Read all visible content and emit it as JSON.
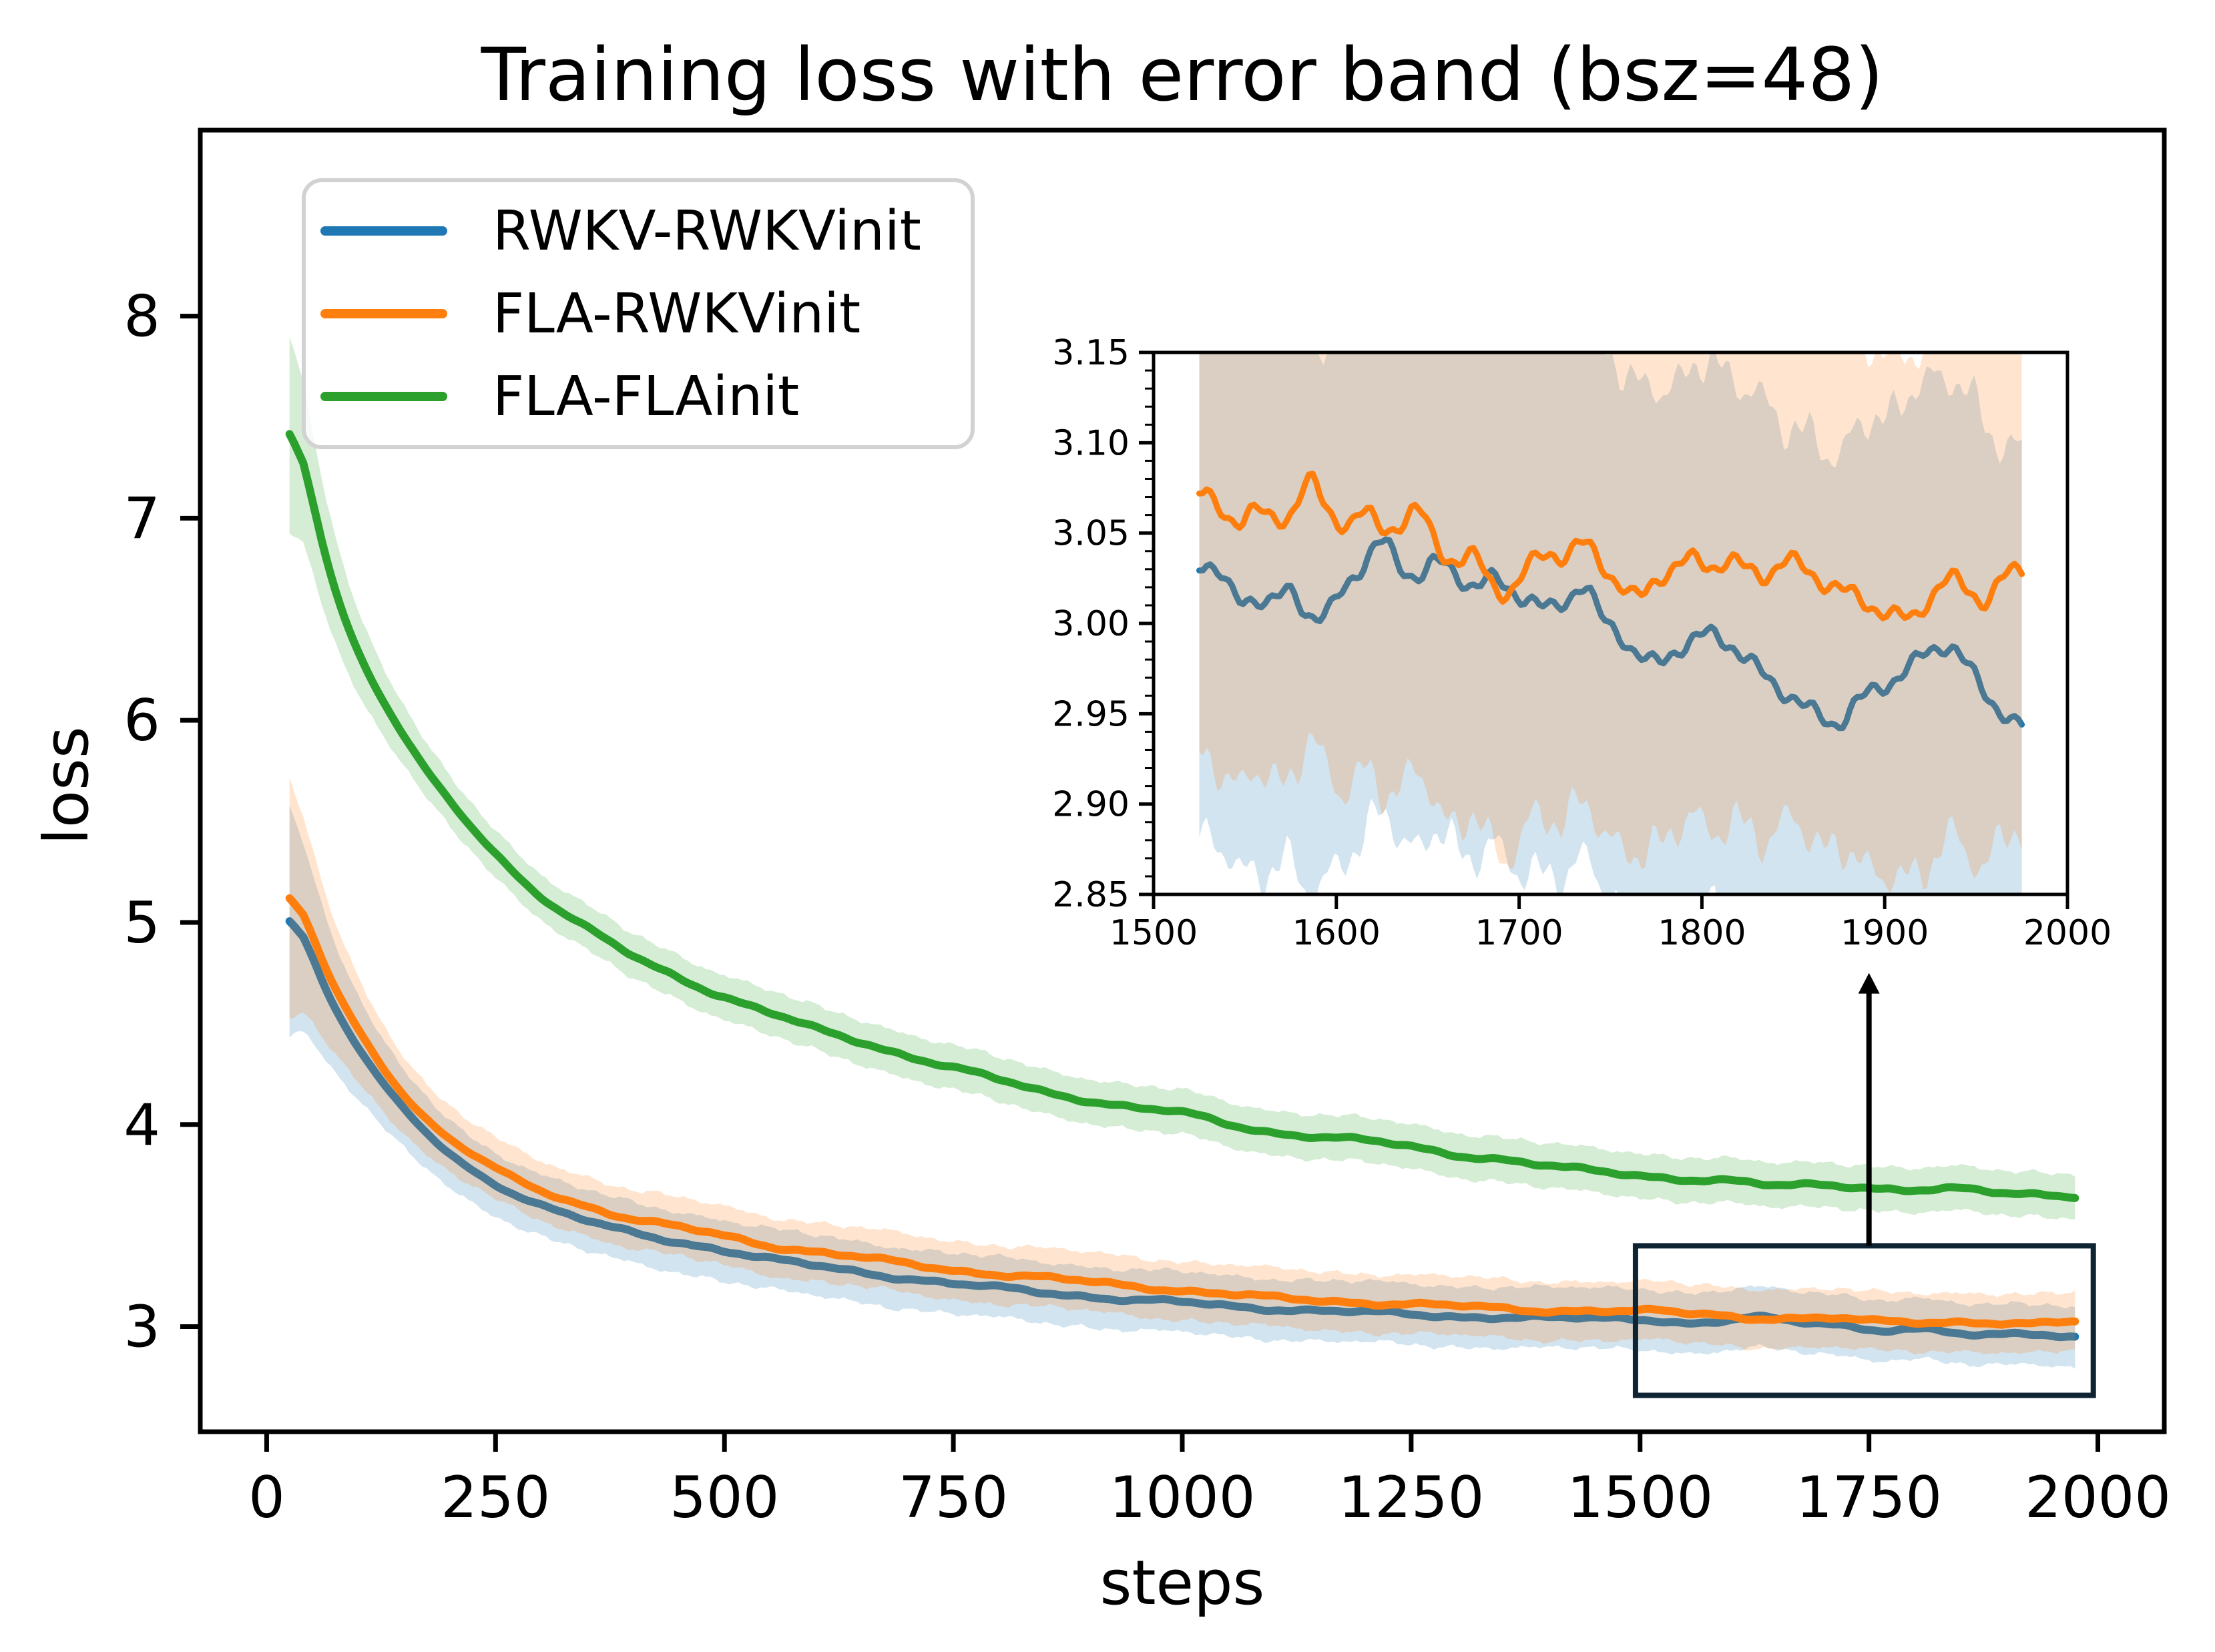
{
  "chart_data": {
    "type": "line",
    "title": "Training loss with error band (bsz=48)",
    "xlabel": "steps",
    "ylabel": "loss",
    "xlim": [
      -72.5,
      2072.5
    ],
    "ylim": [
      2.48,
      8.92
    ],
    "xticks": [
      0,
      250,
      500,
      750,
      1000,
      1250,
      1500,
      1750,
      2000
    ],
    "yticks": [
      3,
      4,
      5,
      6,
      7,
      8
    ],
    "grid": false,
    "legend_position": "upper left",
    "legend_frame_color": "#d2d2d2",
    "spine_color": "#000000",
    "band_opacity": 0.2,
    "series": [
      {
        "name": "RWKV-RWKVinit",
        "color": "#1f77b4",
        "band_halfwidth": 0.15,
        "band_start_extra": 0.42,
        "noise_seed": 11,
        "points": [
          [
            25,
            5.2
          ],
          [
            35,
            5.0
          ],
          [
            50,
            4.82
          ],
          [
            65,
            4.65
          ],
          [
            80,
            4.52
          ],
          [
            100,
            4.38
          ],
          [
            125,
            4.21
          ],
          [
            150,
            4.07
          ],
          [
            175,
            3.95
          ],
          [
            200,
            3.85
          ],
          [
            225,
            3.77
          ],
          [
            250,
            3.7
          ],
          [
            275,
            3.65
          ],
          [
            300,
            3.6
          ],
          [
            325,
            3.56
          ],
          [
            350,
            3.52
          ],
          [
            375,
            3.49
          ],
          [
            400,
            3.46
          ],
          [
            425,
            3.44
          ],
          [
            450,
            3.42
          ],
          [
            475,
            3.4
          ],
          [
            500,
            3.38
          ],
          [
            550,
            3.33
          ],
          [
            600,
            3.3
          ],
          [
            650,
            3.27
          ],
          [
            700,
            3.24
          ],
          [
            750,
            3.21
          ],
          [
            800,
            3.19
          ],
          [
            850,
            3.17
          ],
          [
            900,
            3.15
          ],
          [
            950,
            3.13
          ],
          [
            1000,
            3.12
          ],
          [
            1050,
            3.1
          ],
          [
            1100,
            3.09
          ],
          [
            1150,
            3.08
          ],
          [
            1200,
            3.07
          ],
          [
            1250,
            3.06
          ],
          [
            1300,
            3.05
          ],
          [
            1350,
            3.05
          ],
          [
            1400,
            3.04
          ],
          [
            1450,
            3.04
          ],
          [
            1500,
            3.04
          ],
          [
            1525,
            3.04
          ],
          [
            1550,
            3.01
          ],
          [
            1575,
            3.02
          ],
          [
            1600,
            3.03
          ],
          [
            1625,
            3.05
          ],
          [
            1650,
            3.03
          ],
          [
            1675,
            3.02
          ],
          [
            1700,
            3.02
          ],
          [
            1725,
            3.01
          ],
          [
            1750,
            2.99
          ],
          [
            1775,
            2.98
          ],
          [
            1800,
            2.99
          ],
          [
            1825,
            2.98
          ],
          [
            1850,
            2.96
          ],
          [
            1875,
            2.94
          ],
          [
            1900,
            2.97
          ],
          [
            1925,
            2.98
          ],
          [
            1950,
            2.96
          ],
          [
            1975,
            2.94
          ]
        ]
      },
      {
        "name": "FLA-RWKVinit",
        "color": "#ff7f0e",
        "band_halfwidth": 0.145,
        "band_start_extra": 0.45,
        "noise_seed": 23,
        "points": [
          [
            25,
            5.3
          ],
          [
            35,
            5.12
          ],
          [
            50,
            4.92
          ],
          [
            65,
            4.75
          ],
          [
            80,
            4.62
          ],
          [
            100,
            4.47
          ],
          [
            125,
            4.29
          ],
          [
            150,
            4.14
          ],
          [
            175,
            4.02
          ],
          [
            200,
            3.92
          ],
          [
            225,
            3.85
          ],
          [
            250,
            3.78
          ],
          [
            275,
            3.72
          ],
          [
            300,
            3.67
          ],
          [
            325,
            3.63
          ],
          [
            350,
            3.6
          ],
          [
            375,
            3.56
          ],
          [
            400,
            3.53
          ],
          [
            425,
            3.51
          ],
          [
            450,
            3.49
          ],
          [
            475,
            3.47
          ],
          [
            500,
            3.45
          ],
          [
            550,
            3.4
          ],
          [
            600,
            3.37
          ],
          [
            650,
            3.34
          ],
          [
            700,
            3.31
          ],
          [
            750,
            3.28
          ],
          [
            800,
            3.26
          ],
          [
            850,
            3.24
          ],
          [
            900,
            3.22
          ],
          [
            950,
            3.2
          ],
          [
            1000,
            3.18
          ],
          [
            1050,
            3.16
          ],
          [
            1100,
            3.14
          ],
          [
            1150,
            3.13
          ],
          [
            1200,
            3.12
          ],
          [
            1250,
            3.11
          ],
          [
            1300,
            3.1
          ],
          [
            1350,
            3.09
          ],
          [
            1400,
            3.08
          ],
          [
            1450,
            3.08
          ],
          [
            1500,
            3.07
          ],
          [
            1525,
            3.08
          ],
          [
            1550,
            3.06
          ],
          [
            1575,
            3.07
          ],
          [
            1600,
            3.05
          ],
          [
            1625,
            3.04
          ],
          [
            1650,
            3.05
          ],
          [
            1675,
            3.03
          ],
          [
            1700,
            3.04
          ],
          [
            1725,
            3.04
          ],
          [
            1750,
            3.02
          ],
          [
            1775,
            3.03
          ],
          [
            1800,
            3.03
          ],
          [
            1825,
            3.02
          ],
          [
            1850,
            3.03
          ],
          [
            1875,
            3.02
          ],
          [
            1900,
            3.01
          ],
          [
            1925,
            3.0
          ],
          [
            1950,
            3.02
          ],
          [
            1975,
            3.03
          ]
        ]
      },
      {
        "name": "FLA-FLAinit",
        "color": "#2ca02c",
        "band_halfwidth": 0.11,
        "band_start_extra": 0.38,
        "noise_seed": 37,
        "points": [
          [
            25,
            7.76
          ],
          [
            35,
            7.42
          ],
          [
            50,
            7.05
          ],
          [
            65,
            6.78
          ],
          [
            80,
            6.55
          ],
          [
            100,
            6.32
          ],
          [
            125,
            6.1
          ],
          [
            150,
            5.92
          ],
          [
            175,
            5.74
          ],
          [
            200,
            5.6
          ],
          [
            225,
            5.46
          ],
          [
            250,
            5.35
          ],
          [
            275,
            5.22
          ],
          [
            300,
            5.12
          ],
          [
            325,
            5.04
          ],
          [
            350,
            4.97
          ],
          [
            375,
            4.9
          ],
          [
            400,
            4.83
          ],
          [
            425,
            4.78
          ],
          [
            450,
            4.73
          ],
          [
            475,
            4.68
          ],
          [
            500,
            4.63
          ],
          [
            550,
            4.55
          ],
          [
            600,
            4.47
          ],
          [
            650,
            4.41
          ],
          [
            700,
            4.34
          ],
          [
            750,
            4.28
          ],
          [
            800,
            4.22
          ],
          [
            850,
            4.16
          ],
          [
            900,
            4.12
          ],
          [
            950,
            4.08
          ],
          [
            1000,
            4.06
          ],
          [
            1050,
            4.0
          ],
          [
            1100,
            3.96
          ],
          [
            1150,
            3.94
          ],
          [
            1200,
            3.92
          ],
          [
            1250,
            3.89
          ],
          [
            1300,
            3.85
          ],
          [
            1350,
            3.83
          ],
          [
            1400,
            3.79
          ],
          [
            1450,
            3.77
          ],
          [
            1500,
            3.75
          ],
          [
            1550,
            3.73
          ],
          [
            1600,
            3.72
          ],
          [
            1650,
            3.69
          ],
          [
            1700,
            3.71
          ],
          [
            1750,
            3.69
          ],
          [
            1800,
            3.67
          ],
          [
            1850,
            3.68
          ],
          [
            1900,
            3.66
          ],
          [
            1950,
            3.66
          ],
          [
            1975,
            3.64
          ]
        ]
      }
    ],
    "inset": {
      "xlim": [
        1500,
        2000
      ],
      "ylim": [
        2.85,
        3.15
      ],
      "xticks": [
        1500,
        1600,
        1700,
        1800,
        1900,
        2000
      ],
      "yticks": [
        2.85,
        2.9,
        2.95,
        3.0,
        3.05,
        3.1,
        3.15
      ],
      "minor_tick_step_y": 0.01,
      "series": [
        {
          "name": "RWKV-RWKVinit",
          "color": "#1f77b4",
          "band_halfwidth": 0.15,
          "noise_seed": 51,
          "points": [
            [
              1525,
              3.037
            ],
            [
              1535,
              3.028
            ],
            [
              1545,
              3.012
            ],
            [
              1555,
              3.016
            ],
            [
              1565,
              3.009
            ],
            [
              1575,
              3.021
            ],
            [
              1585,
              3.004
            ],
            [
              1595,
              3.003
            ],
            [
              1605,
              3.021
            ],
            [
              1615,
              3.034
            ],
            [
              1625,
              3.048
            ],
            [
              1635,
              3.03
            ],
            [
              1645,
              3.026
            ],
            [
              1655,
              3.035
            ],
            [
              1665,
              3.028
            ],
            [
              1675,
              3.02
            ],
            [
              1685,
              3.025
            ],
            [
              1695,
              3.019
            ],
            [
              1705,
              3.014
            ],
            [
              1715,
              3.006
            ],
            [
              1725,
              3.012
            ],
            [
              1735,
              3.025
            ],
            [
              1745,
              3.001
            ],
            [
              1755,
              2.996
            ],
            [
              1765,
              2.981
            ],
            [
              1775,
              2.976
            ],
            [
              1785,
              2.986
            ],
            [
              1795,
              2.99
            ],
            [
              1805,
              2.995
            ],
            [
              1815,
              2.99
            ],
            [
              1825,
              2.979
            ],
            [
              1835,
              2.97
            ],
            [
              1845,
              2.963
            ],
            [
              1855,
              2.954
            ],
            [
              1865,
              2.948
            ],
            [
              1875,
              2.944
            ],
            [
              1885,
              2.956
            ],
            [
              1895,
              2.964
            ],
            [
              1905,
              2.969
            ],
            [
              1915,
              2.976
            ],
            [
              1925,
              2.986
            ],
            [
              1935,
              2.99
            ],
            [
              1945,
              2.976
            ],
            [
              1955,
              2.962
            ],
            [
              1965,
              2.95
            ],
            [
              1975,
              2.94
            ]
          ]
        },
        {
          "name": "FLA-RWKVinit",
          "color": "#ff7f0e",
          "band_halfwidth": 0.145,
          "noise_seed": 77,
          "points": [
            [
              1525,
              3.077
            ],
            [
              1535,
              3.061
            ],
            [
              1545,
              3.056
            ],
            [
              1555,
              3.066
            ],
            [
              1565,
              3.054
            ],
            [
              1575,
              3.06
            ],
            [
              1585,
              3.085
            ],
            [
              1595,
              3.059
            ],
            [
              1605,
              3.055
            ],
            [
              1615,
              3.064
            ],
            [
              1625,
              3.049
            ],
            [
              1635,
              3.056
            ],
            [
              1645,
              3.066
            ],
            [
              1655,
              3.041
            ],
            [
              1665,
              3.034
            ],
            [
              1675,
              3.039
            ],
            [
              1685,
              3.021
            ],
            [
              1695,
              3.016
            ],
            [
              1705,
              3.031
            ],
            [
              1715,
              3.041
            ],
            [
              1725,
              3.036
            ],
            [
              1735,
              3.046
            ],
            [
              1745,
              3.034
            ],
            [
              1755,
              3.021
            ],
            [
              1765,
              3.011
            ],
            [
              1775,
              3.026
            ],
            [
              1785,
              3.031
            ],
            [
              1795,
              3.036
            ],
            [
              1805,
              3.031
            ],
            [
              1815,
              3.036
            ],
            [
              1825,
              3.029
            ],
            [
              1835,
              3.026
            ],
            [
              1845,
              3.036
            ],
            [
              1855,
              3.031
            ],
            [
              1865,
              3.024
            ],
            [
              1875,
              3.019
            ],
            [
              1885,
              3.014
            ],
            [
              1895,
              3.009
            ],
            [
              1905,
              3.004
            ],
            [
              1915,
              3.001
            ],
            [
              1925,
              3.016
            ],
            [
              1935,
              3.026
            ],
            [
              1945,
              3.019
            ],
            [
              1955,
              3.011
            ],
            [
              1965,
              3.026
            ],
            [
              1975,
              3.03
            ]
          ]
        }
      ]
    },
    "annotations": {
      "zoom_box": {
        "x_range": [
          1495,
          1995
        ],
        "y_range": [
          2.66,
          3.4
        ],
        "color": "#0e2433"
      },
      "arrow": {
        "x": 1750,
        "y_from": 3.4,
        "y_to": 4.75,
        "color": "#000000"
      }
    }
  }
}
